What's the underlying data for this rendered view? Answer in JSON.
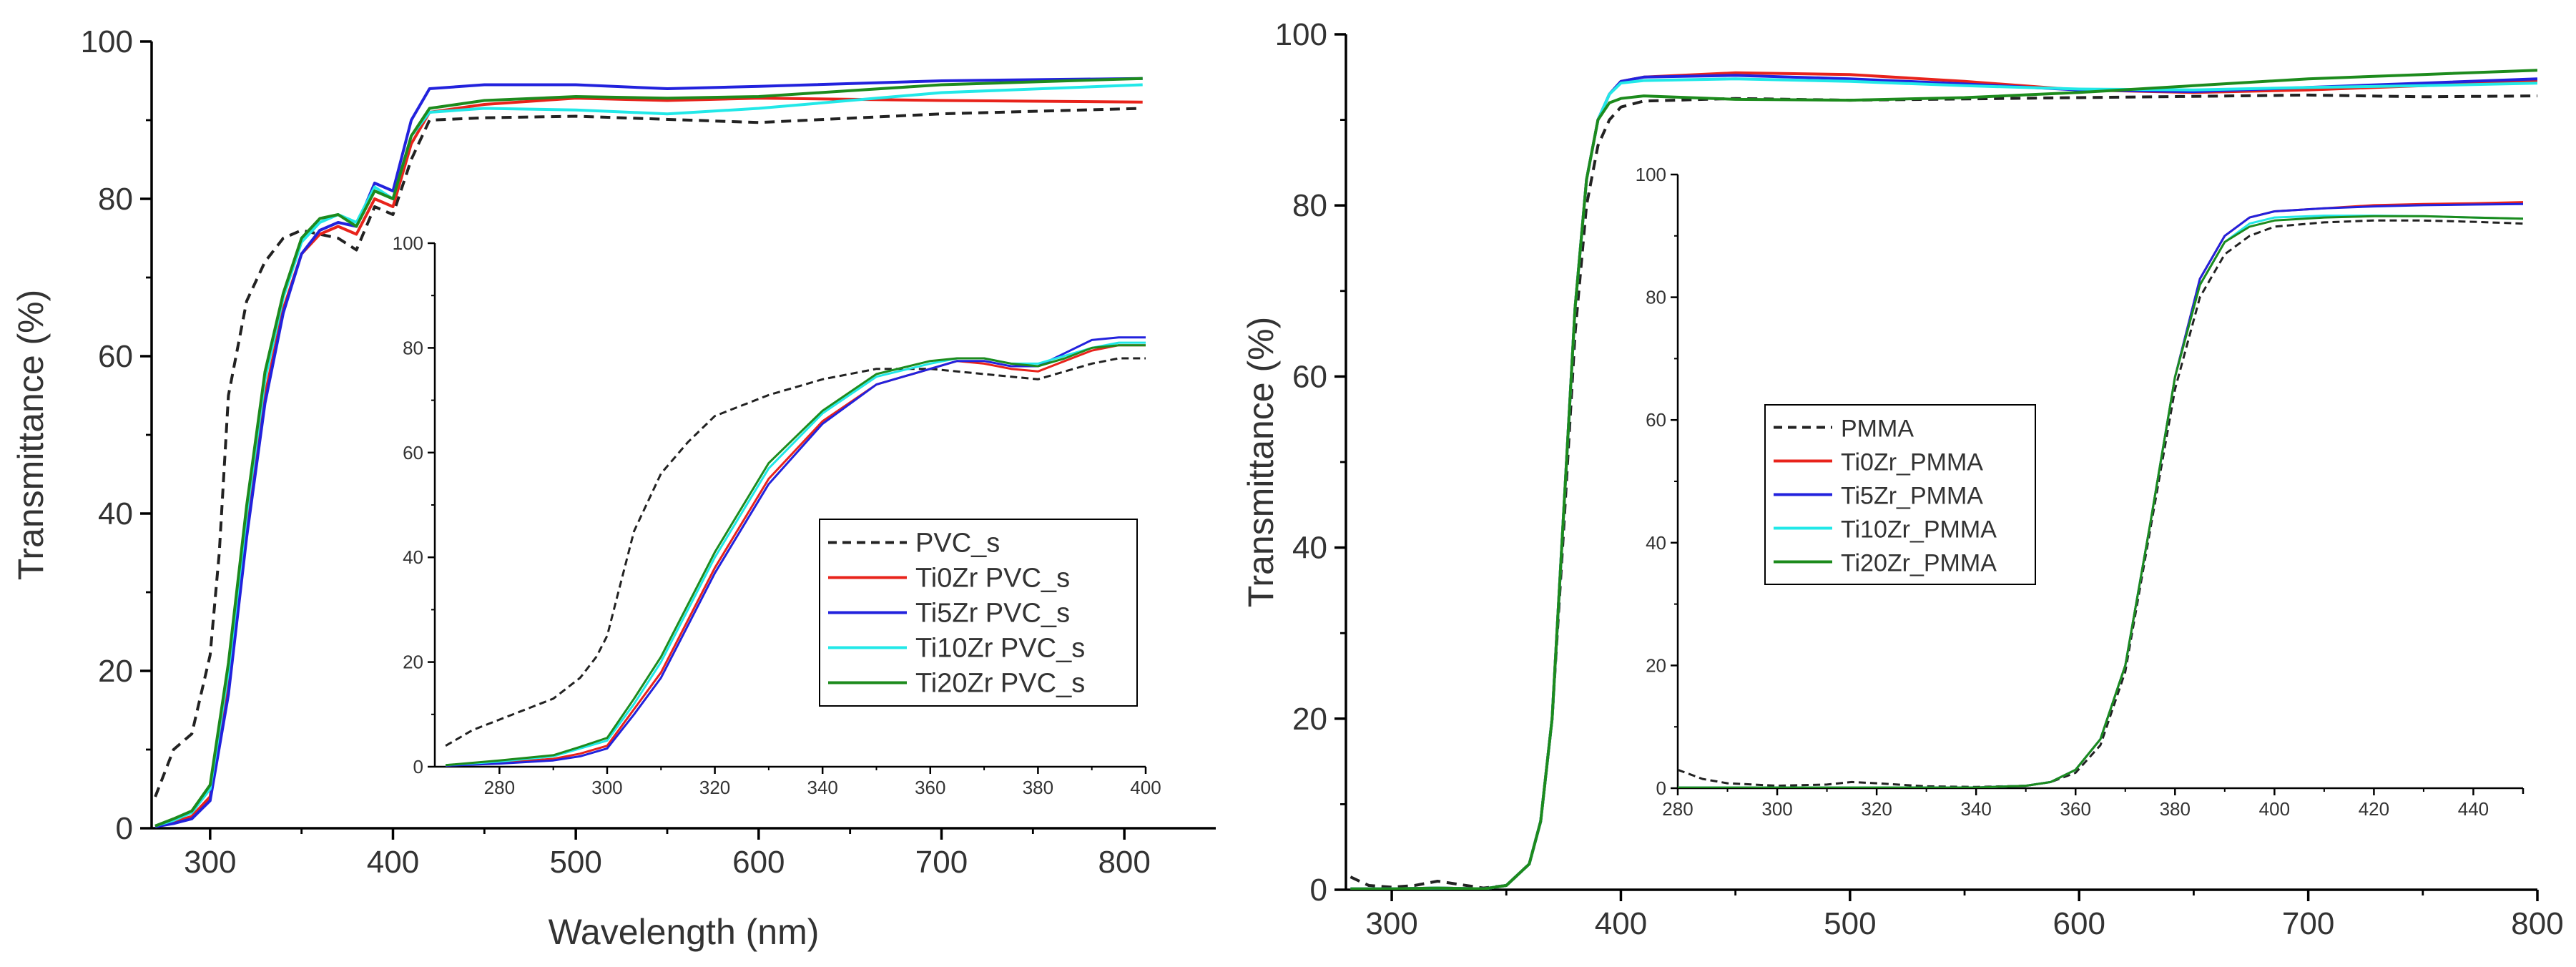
{
  "chart_data": [
    {
      "type": "line",
      "xlabel": "Wavelength (nm)",
      "ylabel": "Transmittance (%)",
      "xlim": [
        268,
        850
      ],
      "ylim": [
        0,
        100
      ],
      "x_ticks": [
        300,
        400,
        500,
        600,
        700,
        800
      ],
      "y_ticks": [
        0,
        20,
        40,
        60,
        80,
        100
      ],
      "legend_position": "inset-right",
      "series": [
        {
          "name": "PVC_s",
          "color": "#222222",
          "dash": "dashed",
          "x": [
            270,
            280,
            290,
            300,
            305,
            310,
            320,
            330,
            340,
            350,
            360,
            370,
            380,
            390,
            400,
            410,
            420,
            450,
            500,
            600,
            700,
            810
          ],
          "y": [
            4,
            10,
            12,
            22,
            35,
            55,
            67,
            72,
            75,
            76,
            75.5,
            75,
            73.5,
            79,
            78,
            85,
            90,
            90.3,
            90.5,
            89.7,
            90.8,
            91.5
          ]
        },
        {
          "name": "Ti0Zr PVC_s",
          "color": "#e8231b",
          "dash": "solid",
          "x": [
            270,
            280,
            290,
            300,
            310,
            320,
            330,
            340,
            350,
            360,
            370,
            380,
            390,
            400,
            410,
            420,
            450,
            500,
            550,
            600,
            700,
            810
          ],
          "y": [
            0.2,
            0.8,
            1.5,
            4,
            18,
            38,
            55,
            66,
            73,
            75.5,
            76.5,
            75.5,
            80,
            79,
            87,
            91,
            92,
            92.8,
            92.5,
            92.8,
            92.5,
            92.3
          ]
        },
        {
          "name": "Ti5Zr PVC_s",
          "color": "#2222dd",
          "dash": "solid",
          "x": [
            270,
            280,
            290,
            300,
            310,
            320,
            330,
            340,
            350,
            360,
            370,
            380,
            390,
            400,
            410,
            420,
            450,
            500,
            550,
            600,
            700,
            810
          ],
          "y": [
            0.2,
            0.6,
            1.2,
            3.5,
            17,
            37,
            54,
            65.5,
            73,
            76,
            77,
            76.5,
            82,
            81,
            90,
            94,
            94.5,
            94.5,
            94,
            94.3,
            95,
            95.3
          ]
        },
        {
          "name": "Ti10Zr PVC_s",
          "color": "#22e8e8",
          "dash": "solid",
          "x": [
            270,
            280,
            290,
            300,
            310,
            320,
            330,
            340,
            350,
            360,
            370,
            380,
            390,
            400,
            410,
            420,
            450,
            500,
            550,
            600,
            700,
            810
          ],
          "y": [
            0.3,
            1,
            2,
            5,
            20,
            40,
            57,
            67.5,
            74.5,
            77,
            78,
            77,
            81.5,
            80,
            88,
            91,
            91.5,
            91.3,
            90.8,
            91.5,
            93.5,
            94.5
          ]
        },
        {
          "name": "Ti20Zr PVC_s",
          "color": "#1d8b1d",
          "dash": "solid",
          "x": [
            270,
            280,
            290,
            300,
            310,
            320,
            330,
            340,
            350,
            360,
            370,
            380,
            390,
            400,
            410,
            420,
            450,
            500,
            550,
            600,
            700,
            810
          ],
          "y": [
            0.3,
            1.2,
            2.2,
            5.5,
            21,
            41,
            58,
            68,
            75,
            77.5,
            78,
            76.5,
            81,
            80,
            88,
            91.5,
            92.5,
            93,
            92.8,
            93,
            94.5,
            95.3
          ]
        }
      ]
    },
    {
      "type": "line",
      "inset": true,
      "xlabel": "",
      "ylabel": "",
      "xlim": [
        268,
        400
      ],
      "ylim": [
        0,
        100
      ],
      "x_ticks": [
        280,
        300,
        320,
        340,
        360,
        380,
        400
      ],
      "y_ticks": [
        0,
        20,
        40,
        60,
        80,
        100
      ],
      "series": [
        {
          "name": "PVC_s",
          "color": "#222222",
          "dash": "dashed",
          "x": [
            270,
            275,
            280,
            290,
            295,
            298,
            300,
            302,
            305,
            310,
            315,
            320,
            330,
            340,
            350,
            360,
            370,
            380,
            385,
            390,
            395,
            400
          ],
          "y": [
            4,
            7,
            9,
            13,
            17,
            21,
            25,
            33,
            45,
            56,
            62,
            67,
            71,
            74,
            76,
            76,
            75,
            74,
            75.5,
            77,
            78,
            78
          ]
        },
        {
          "name": "Ti0Zr PVC_s",
          "color": "#e8231b",
          "dash": "solid",
          "x": [
            270,
            280,
            290,
            295,
            300,
            305,
            310,
            320,
            330,
            340,
            350,
            360,
            365,
            370,
            375,
            380,
            385,
            390,
            395,
            400
          ],
          "y": [
            0.2,
            0.8,
            1.5,
            2.5,
            4,
            11,
            18,
            38,
            55,
            66,
            73,
            76,
            77.5,
            77,
            76,
            75.5,
            77.5,
            79.5,
            80.5,
            80.5
          ]
        },
        {
          "name": "Ti5Zr PVC_s",
          "color": "#2222dd",
          "dash": "solid",
          "x": [
            270,
            280,
            290,
            295,
            300,
            305,
            310,
            320,
            330,
            340,
            350,
            360,
            365,
            370,
            375,
            380,
            385,
            390,
            395,
            400
          ],
          "y": [
            0.2,
            0.6,
            1.2,
            2,
            3.5,
            10,
            17,
            37,
            54,
            65.5,
            73,
            76,
            77.5,
            77.5,
            76.5,
            76.5,
            79,
            81.5,
            82,
            82
          ]
        },
        {
          "name": "Ti10Zr PVC_s",
          "color": "#22e8e8",
          "dash": "solid",
          "x": [
            270,
            280,
            290,
            295,
            300,
            305,
            310,
            320,
            330,
            340,
            350,
            360,
            365,
            370,
            375,
            380,
            385,
            390,
            395,
            400
          ],
          "y": [
            0.3,
            1,
            2,
            3.5,
            5,
            12,
            20,
            40,
            57,
            67.5,
            74.5,
            77,
            78,
            78,
            77,
            77,
            78.5,
            80,
            81,
            81
          ]
        },
        {
          "name": "Ti20Zr PVC_s",
          "color": "#1d8b1d",
          "dash": "solid",
          "x": [
            270,
            280,
            290,
            295,
            300,
            305,
            310,
            320,
            330,
            340,
            350,
            360,
            365,
            370,
            375,
            380,
            385,
            390,
            395,
            400
          ],
          "y": [
            0.3,
            1.2,
            2.2,
            3.8,
            5.5,
            13,
            21,
            41,
            58,
            68,
            75,
            77.5,
            78,
            78,
            77,
            76.5,
            78,
            80,
            80.5,
            80.5
          ]
        }
      ]
    },
    {
      "type": "line",
      "xlabel": "",
      "ylabel": "Transmittance (%)",
      "xlim": [
        280,
        800
      ],
      "ylim": [
        0,
        100
      ],
      "x_ticks": [
        300,
        400,
        500,
        600,
        700,
        800
      ],
      "y_ticks": [
        0,
        20,
        40,
        60,
        80,
        100
      ],
      "legend_position": "inset-left",
      "series": [
        {
          "name": "PMMA",
          "color": "#222222",
          "dash": "dashed",
          "x": [
            282,
            290,
            300,
            310,
            320,
            330,
            340,
            350,
            360,
            365,
            370,
            375,
            380,
            385,
            390,
            395,
            400,
            410,
            450,
            500,
            600,
            700,
            750,
            800
          ],
          "y": [
            1.5,
            0.5,
            0.3,
            0.5,
            1,
            0.6,
            0.2,
            0.5,
            3,
            8,
            20,
            42,
            65,
            80,
            87,
            90,
            91.5,
            92.2,
            92.5,
            92.3,
            92.6,
            92.9,
            92.7,
            92.8
          ]
        },
        {
          "name": "Ti0Zr_PMMA",
          "color": "#e8231b",
          "dash": "solid",
          "x": [
            282,
            300,
            320,
            340,
            350,
            360,
            365,
            370,
            375,
            380,
            385,
            390,
            395,
            400,
            410,
            450,
            500,
            550,
            600,
            650,
            700,
            750,
            800
          ],
          "y": [
            0.1,
            0.1,
            0.2,
            0.1,
            0.5,
            3,
            8,
            20,
            44,
            68,
            83,
            90,
            93,
            94.5,
            95,
            95.5,
            95.3,
            94.5,
            93.5,
            93.2,
            93.5,
            94,
            94.5
          ]
        },
        {
          "name": "Ti5Zr_PMMA",
          "color": "#2222dd",
          "dash": "solid",
          "x": [
            282,
            300,
            320,
            340,
            350,
            360,
            365,
            370,
            375,
            380,
            385,
            390,
            395,
            400,
            410,
            450,
            500,
            550,
            600,
            650,
            700,
            750,
            800
          ],
          "y": [
            0.1,
            0.1,
            0.2,
            0.1,
            0.5,
            3,
            8,
            20,
            44,
            68,
            83,
            90,
            93,
            94.5,
            95,
            95.2,
            94.8,
            94.2,
            93.5,
            93.3,
            93.8,
            94.3,
            94.8
          ]
        },
        {
          "name": "Ti10Zr_PMMA",
          "color": "#22e8e8",
          "dash": "solid",
          "x": [
            282,
            300,
            320,
            340,
            350,
            360,
            365,
            370,
            375,
            380,
            385,
            390,
            395,
            400,
            410,
            450,
            500,
            550,
            600,
            650,
            700,
            750,
            800
          ],
          "y": [
            0.1,
            0.1,
            0.2,
            0.1,
            0.5,
            3,
            8,
            20,
            44,
            68,
            83,
            90,
            93,
            94.3,
            94.6,
            94.8,
            94.5,
            94,
            93.6,
            93.5,
            93.8,
            94,
            94.3
          ]
        },
        {
          "name": "Ti20Zr_PMMA",
          "color": "#1d8b1d",
          "dash": "solid",
          "x": [
            282,
            300,
            320,
            340,
            350,
            360,
            365,
            370,
            375,
            380,
            385,
            390,
            395,
            400,
            410,
            450,
            500,
            550,
            600,
            650,
            700,
            750,
            800
          ],
          "y": [
            0.1,
            0.1,
            0.2,
            0.1,
            0.5,
            3,
            8,
            20,
            44,
            68,
            83,
            90,
            92,
            92.5,
            92.8,
            92.4,
            92.3,
            92.6,
            93.2,
            94,
            94.8,
            95.3,
            95.8
          ]
        }
      ]
    },
    {
      "type": "line",
      "inset": true,
      "xlabel": "",
      "ylabel": "",
      "xlim": [
        280,
        450
      ],
      "ylim": [
        0,
        100
      ],
      "x_ticks": [
        280,
        300,
        320,
        340,
        360,
        380,
        400,
        420,
        440
      ],
      "y_ticks": [
        0,
        20,
        40,
        60,
        80,
        100
      ],
      "series": [
        {
          "name": "PMMA",
          "color": "#222222",
          "dash": "dashed",
          "x": [
            280,
            285,
            290,
            300,
            310,
            315,
            320,
            330,
            340,
            350,
            355,
            360,
            365,
            370,
            375,
            380,
            385,
            390,
            395,
            400,
            410,
            420,
            430,
            440,
            450
          ],
          "y": [
            3,
            1.5,
            0.8,
            0.4,
            0.6,
            1,
            0.8,
            0.3,
            0.2,
            0.4,
            1,
            2.5,
            7,
            19,
            42,
            65,
            80,
            87,
            90,
            91.5,
            92.2,
            92.5,
            92.5,
            92.3,
            92
          ]
        },
        {
          "name": "Ti0Zr_PMMA",
          "color": "#e8231b",
          "dash": "solid",
          "x": [
            280,
            300,
            320,
            340,
            350,
            355,
            360,
            365,
            370,
            375,
            380,
            385,
            390,
            395,
            400,
            410,
            420,
            430,
            440,
            450
          ],
          "y": [
            0.1,
            0.1,
            0.1,
            0.1,
            0.4,
            1,
            3,
            8,
            20,
            43,
            67,
            83,
            90,
            93,
            94,
            94.5,
            95,
            95.2,
            95.3,
            95.5
          ]
        },
        {
          "name": "Ti5Zr_PMMA",
          "color": "#2222dd",
          "dash": "solid",
          "x": [
            280,
            300,
            320,
            340,
            350,
            355,
            360,
            365,
            370,
            375,
            380,
            385,
            390,
            395,
            400,
            410,
            420,
            430,
            440,
            450
          ],
          "y": [
            0.1,
            0.1,
            0.1,
            0.1,
            0.4,
            1,
            3,
            8,
            20,
            43,
            67,
            83,
            90,
            93,
            94,
            94.5,
            94.8,
            95,
            95.1,
            95.2
          ]
        },
        {
          "name": "Ti10Zr_PMMA",
          "color": "#22e8e8",
          "dash": "solid",
          "x": [
            280,
            300,
            320,
            340,
            350,
            355,
            360,
            365,
            370,
            375,
            380,
            385,
            390,
            395,
            400,
            410,
            420,
            430,
            440,
            450
          ],
          "y": [
            0.1,
            0.1,
            0.1,
            0.1,
            0.4,
            1,
            3,
            8,
            20,
            43,
            67,
            82,
            89,
            92,
            93,
            93.3,
            93.3,
            93.2,
            93,
            92.8
          ]
        },
        {
          "name": "Ti20Zr_PMMA",
          "color": "#1d8b1d",
          "dash": "solid",
          "x": [
            280,
            300,
            320,
            340,
            350,
            355,
            360,
            365,
            370,
            375,
            380,
            385,
            390,
            395,
            400,
            410,
            420,
            430,
            440,
            450
          ],
          "y": [
            0.1,
            0.1,
            0.1,
            0.1,
            0.4,
            1,
            3,
            8,
            20,
            43,
            67,
            82,
            89,
            91.5,
            92.5,
            93,
            93.2,
            93.2,
            93,
            92.8
          ]
        }
      ]
    }
  ]
}
